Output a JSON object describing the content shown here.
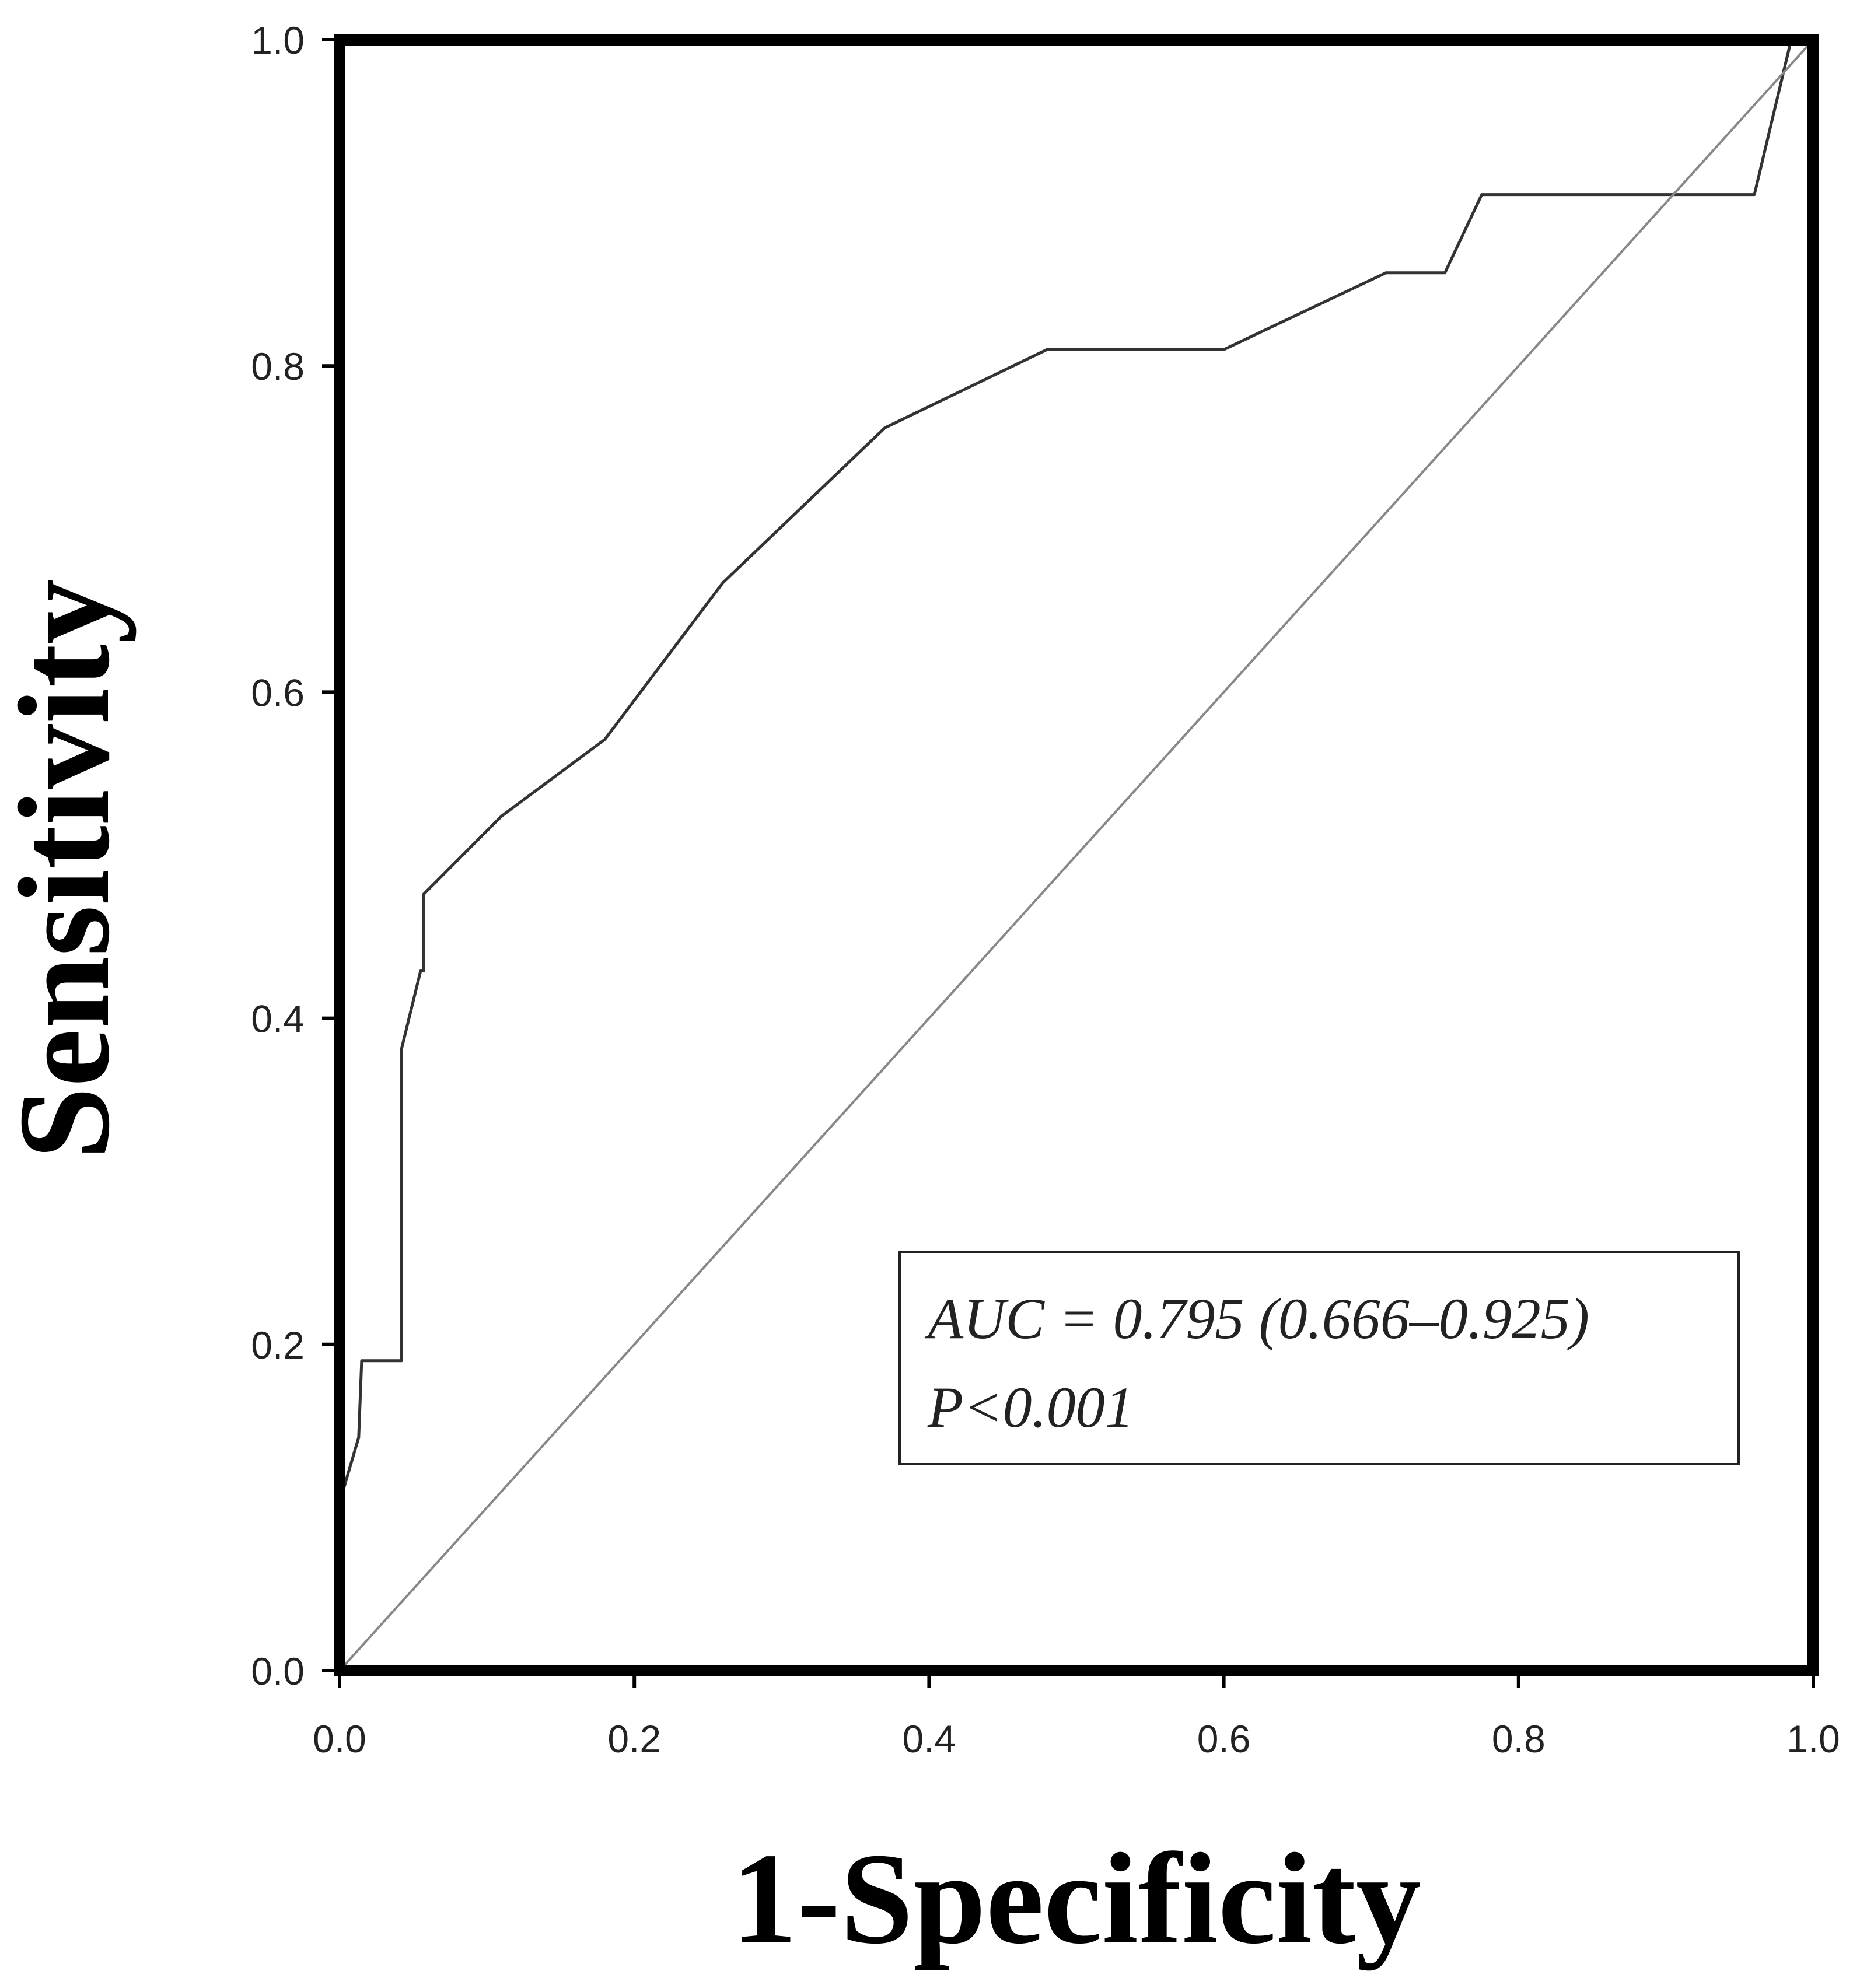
{
  "chart_data": {
    "type": "line",
    "xlabel": "1-Specificity",
    "ylabel": "Sensitivity",
    "xlim": [
      0.0,
      1.0
    ],
    "ylim": [
      0.0,
      1.0
    ],
    "xticks": [
      "0.0",
      "0.2",
      "0.4",
      "0.6",
      "0.8",
      "1.0"
    ],
    "yticks": [
      "0.0",
      "0.2",
      "0.4",
      "0.6",
      "0.8",
      "1.0"
    ],
    "grid": false,
    "series": [
      {
        "x": [
          0.0,
          0.0,
          0.013,
          0.015,
          0.042,
          0.042,
          0.055,
          0.057,
          0.057,
          0.11,
          0.18,
          0.26,
          0.37,
          0.48,
          0.6,
          0.71,
          0.75,
          0.775,
          0.96,
          0.985,
          1.0
        ],
        "y": [
          0.0,
          0.103,
          0.143,
          0.19,
          0.19,
          0.381,
          0.429,
          0.429,
          0.476,
          0.524,
          0.571,
          0.667,
          0.762,
          0.81,
          0.81,
          0.857,
          0.857,
          0.905,
          0.905,
          1.0,
          1.0
        ],
        "color": "#333333"
      },
      {
        "x": [
          0.0,
          1.0
        ],
        "y": [
          0.0,
          1.0
        ],
        "color": "#888888"
      }
    ],
    "annotation": {
      "line1": "AUC = 0.795 (0.666–0.925)",
      "line2": "P<0.001",
      "placement": "bottom-right"
    }
  }
}
